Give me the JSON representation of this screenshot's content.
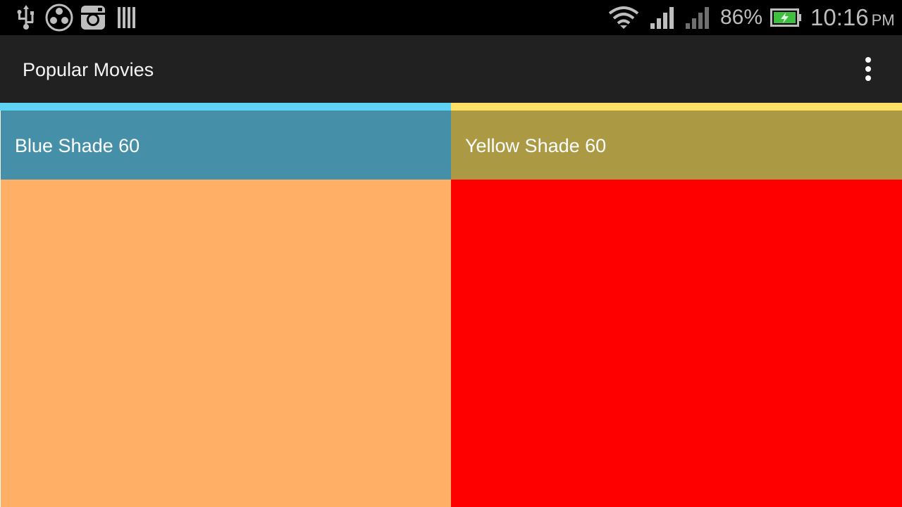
{
  "status_bar": {
    "left_icons": [
      "usb-icon",
      "app-circle-icon",
      "instagram-icon",
      "barcode-icon"
    ],
    "right_icons": [
      "wifi-icon",
      "signal-icon",
      "signal-secondary-icon",
      "battery-charging-icon"
    ],
    "battery_percent": "86%",
    "time": "10:16",
    "ampm": "PM"
  },
  "app_bar": {
    "title": "Popular Movies",
    "overflow_icon": "more-vert-icon"
  },
  "tiles": [
    {
      "label": "Blue Shade 60",
      "accent_color": "#5fd3f3",
      "header_color": "#4590a8",
      "body_color": "#ffb066"
    },
    {
      "label": "Yellow Shade 60",
      "accent_color": "#ffe066",
      "header_color": "#ab9944",
      "body_color": "#ff0000"
    }
  ],
  "colors": {
    "status_bar_bg": "#000000",
    "app_bar_bg": "#212121",
    "battery_fill": "#3fbf3f"
  }
}
